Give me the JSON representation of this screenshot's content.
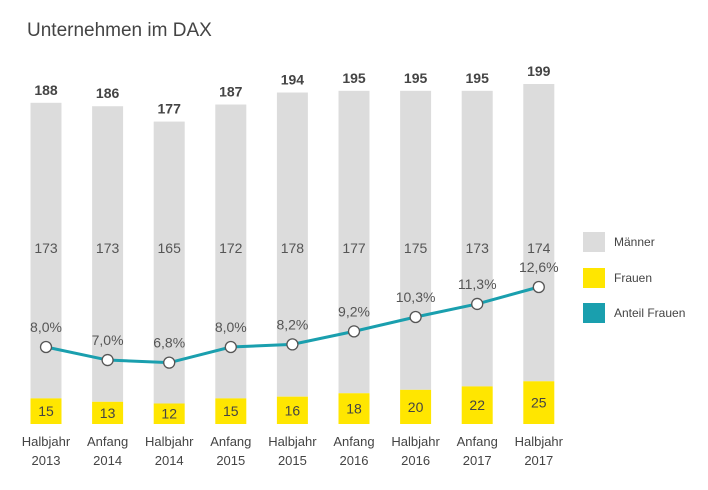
{
  "chart_data": {
    "type": "bar",
    "title": "Unternehmen im DAX",
    "categories": [
      [
        "Halbjahr",
        "2013"
      ],
      [
        "Anfang",
        "2014"
      ],
      [
        "Halbjahr",
        "2014"
      ],
      [
        "Anfang",
        "2015"
      ],
      [
        "Halbjahr",
        "2015"
      ],
      [
        "Anfang",
        "2016"
      ],
      [
        "Halbjahr",
        "2016"
      ],
      [
        "Anfang",
        "2017"
      ],
      [
        "Halbjahr",
        "2017"
      ]
    ],
    "totals": [
      "188",
      "186",
      "177",
      "187",
      "194",
      "195",
      "195",
      "195",
      "199"
    ],
    "series": [
      {
        "name": "Männer",
        "kind": "stacked-bar",
        "color": "#dcdcdc",
        "values": [
          173,
          173,
          165,
          172,
          178,
          177,
          175,
          173,
          174
        ]
      },
      {
        "name": "Frauen",
        "kind": "stacked-bar",
        "color": "#ffe600",
        "values": [
          15,
          13,
          12,
          15,
          16,
          18,
          20,
          22,
          25
        ]
      },
      {
        "name": "Anteil Frauen",
        "kind": "line",
        "color": "#1a9fae",
        "values": [
          8.0,
          7.0,
          6.8,
          8.0,
          8.2,
          9.2,
          10.3,
          11.3,
          12.6
        ],
        "labels": [
          "8,0%",
          "7,0%",
          "6,8%",
          "8,0%",
          "8,2%",
          "9,2%",
          "10,3%",
          "11,3%",
          "12,6%"
        ]
      }
    ],
    "bar_ylim": [
      0,
      199
    ],
    "line_ylim": [
      0,
      27
    ],
    "grid": false,
    "legend_position": "right"
  }
}
